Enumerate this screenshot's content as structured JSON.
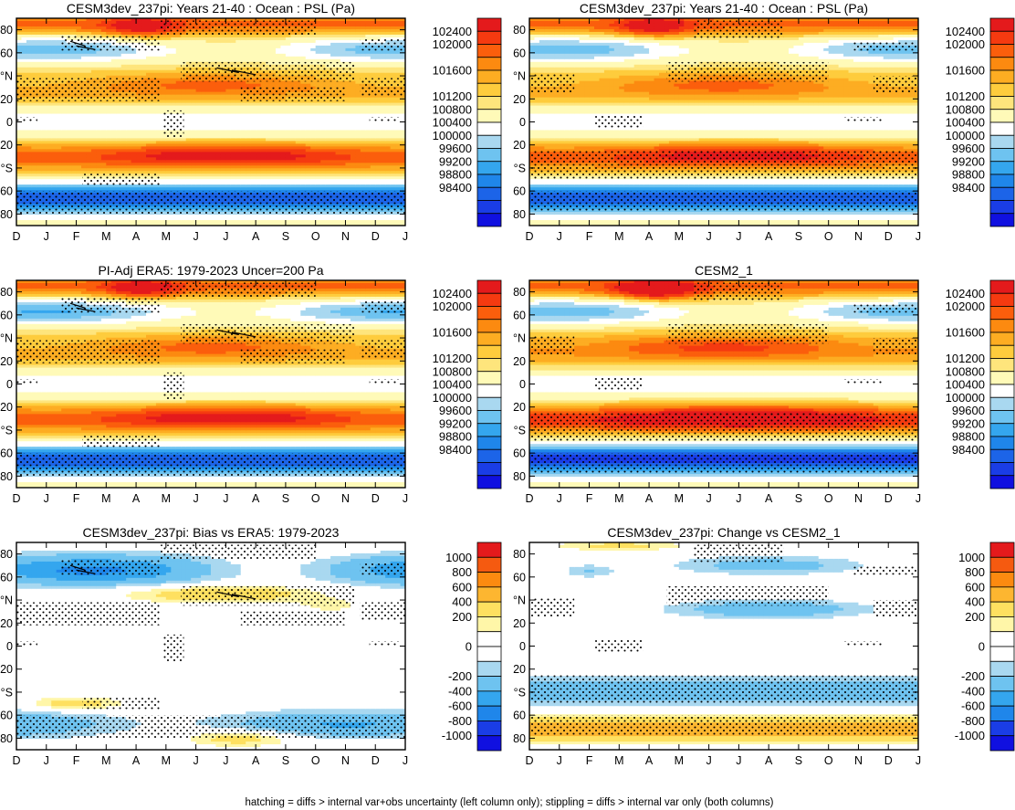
{
  "figure": {
    "footnote": "hatching = diffs > internal var+obs uncertainty (left column only); stippling = diffs > internal var only (both columns)"
  },
  "chart_data": [
    {
      "type": "heatmap",
      "id": "p1",
      "title": "CESM3dev_237pi: Years 21-40 : Ocean : PSL (Pa)",
      "x_tick_labels": [
        "D",
        "J",
        "F",
        "M",
        "A",
        "M",
        "J",
        "J",
        "A",
        "S",
        "O",
        "N",
        "D",
        "J"
      ],
      "y_tick_labels": [
        "80",
        "60",
        "°N",
        "20",
        "0",
        "20",
        "°S",
        "60",
        "80"
      ],
      "ylim": [
        -90,
        90
      ],
      "field": "psl",
      "variant": "cesm3",
      "stipple": "model",
      "colorbar": [
        "102400",
        "102000",
        "101600",
        "101200",
        "100800",
        "100400",
        "100000",
        "99600",
        "99200",
        "98800",
        "98400"
      ]
    },
    {
      "type": "heatmap",
      "id": "p2",
      "title": "CESM3dev_237pi: Years 21-40 : Ocean : PSL (Pa)",
      "x_tick_labels": [
        "D",
        "J",
        "F",
        "M",
        "A",
        "M",
        "J",
        "J",
        "A",
        "S",
        "O",
        "N",
        "D",
        "J"
      ],
      "y_tick_labels": [
        "80",
        "60",
        "°N",
        "20",
        "0",
        "20",
        "°S",
        "60",
        "80"
      ],
      "ylim": [
        -90,
        90
      ],
      "field": "psl",
      "variant": "cesm3",
      "stipple": "change",
      "colorbar": [
        "102400",
        "102000",
        "101600",
        "101200",
        "100800",
        "100400",
        "100000",
        "99600",
        "99200",
        "98800",
        "98400"
      ]
    },
    {
      "type": "heatmap",
      "id": "p3",
      "title": "PI-Adj ERA5: 1979-2023 Uncer=200 Pa",
      "x_tick_labels": [
        "D",
        "J",
        "F",
        "M",
        "A",
        "M",
        "J",
        "J",
        "A",
        "S",
        "O",
        "N",
        "D",
        "J"
      ],
      "y_tick_labels": [
        "80",
        "60",
        "°N",
        "20",
        "0",
        "20",
        "°S",
        "60",
        "80"
      ],
      "ylim": [
        -90,
        90
      ],
      "field": "psl",
      "variant": "era5",
      "stipple": "model",
      "colorbar": [
        "102400",
        "102000",
        "101600",
        "101200",
        "100800",
        "100400",
        "100000",
        "99600",
        "99200",
        "98800",
        "98400"
      ]
    },
    {
      "type": "heatmap",
      "id": "p4",
      "title": "CESM2_1",
      "x_tick_labels": [
        "D",
        "J",
        "F",
        "M",
        "A",
        "M",
        "J",
        "J",
        "A",
        "S",
        "O",
        "N",
        "D",
        "J"
      ],
      "y_tick_labels": [
        "80",
        "60",
        "°N",
        "20",
        "0",
        "20",
        "°S",
        "60",
        "80"
      ],
      "ylim": [
        -90,
        90
      ],
      "field": "psl",
      "variant": "cesm2",
      "stipple": "change",
      "colorbar": [
        "102400",
        "102000",
        "101600",
        "101200",
        "100800",
        "100400",
        "100000",
        "99600",
        "99200",
        "98800",
        "98400"
      ]
    },
    {
      "type": "heatmap",
      "id": "p5",
      "title": "CESM3dev_237pi: Bias vs ERA5: 1979-2023",
      "x_tick_labels": [
        "D",
        "J",
        "F",
        "M",
        "A",
        "M",
        "J",
        "J",
        "A",
        "S",
        "O",
        "N",
        "D",
        "J"
      ],
      "y_tick_labels": [
        "80",
        "60",
        "°N",
        "20",
        "0",
        "20",
        "°S",
        "60",
        "80"
      ],
      "ylim": [
        -90,
        90
      ],
      "field": "diff",
      "variant": "bias",
      "stipple": "model",
      "colorbar": [
        "1000",
        "800",
        "600",
        "400",
        "200",
        "0",
        "-200",
        "-400",
        "-600",
        "-800",
        "-1000"
      ]
    },
    {
      "type": "heatmap",
      "id": "p6",
      "title": "CESM3dev_237pi: Change vs CESM2_1",
      "x_tick_labels": [
        "D",
        "J",
        "F",
        "M",
        "A",
        "M",
        "J",
        "J",
        "A",
        "S",
        "O",
        "N",
        "D",
        "J"
      ],
      "y_tick_labels": [
        "80",
        "60",
        "°N",
        "20",
        "0",
        "20",
        "°S",
        "60",
        "80"
      ],
      "ylim": [
        -90,
        90
      ],
      "field": "diff",
      "variant": "change",
      "stipple": "change",
      "colorbar": [
        "1000",
        "800",
        "600",
        "400",
        "200",
        "0",
        "-200",
        "-400",
        "-600",
        "-800",
        "-1000"
      ]
    }
  ]
}
